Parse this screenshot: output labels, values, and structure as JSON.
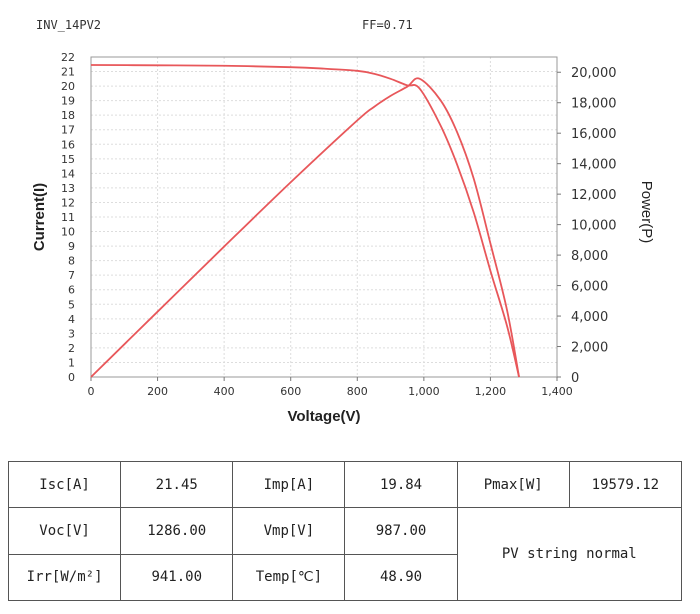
{
  "header": {
    "inverter": "INV_14PV2",
    "fill_factor": "FF=0.71"
  },
  "chart_data": {
    "type": "line",
    "xlabel": "Voltage(V)",
    "ylabel_left": "Current(I)",
    "ylabel_right": "Power(P)",
    "xlim": [
      0,
      1400
    ],
    "ylim_left": [
      0,
      22
    ],
    "ylim_right": [
      0,
      21000
    ],
    "x_ticks": [
      "0",
      "200",
      "400",
      "600",
      "800",
      "1,000",
      "1,200",
      "1,400"
    ],
    "y_left_ticks": [
      "0",
      "1",
      "2",
      "3",
      "4",
      "5",
      "6",
      "7",
      "8",
      "9",
      "10",
      "11",
      "12",
      "13",
      "14",
      "15",
      "16",
      "17",
      "18",
      "19",
      "20",
      "21",
      "22"
    ],
    "y_right_ticks": [
      "0",
      "2,000",
      "4,000",
      "6,000",
      "8,000",
      "10,000",
      "12,000",
      "14,000",
      "16,000",
      "18,000",
      "20,000"
    ],
    "grid": true,
    "series": [
      {
        "axis": "left",
        "color": "#e8575a",
        "x": [
          0,
          200,
          400,
          600,
          700,
          800,
          850,
          900,
          950,
          987,
          1050,
          1100,
          1150,
          1200,
          1250,
          1286
        ],
        "y": [
          21.45,
          21.43,
          21.4,
          21.3,
          21.2,
          21.05,
          20.85,
          20.5,
          20.05,
          19.84,
          17.3,
          14.6,
          11.3,
          7.3,
          3.5,
          0
        ]
      },
      {
        "axis": "right",
        "color": "#e8575a",
        "x": [
          0,
          200,
          400,
          600,
          800,
          850,
          900,
          950,
          987,
          1050,
          1100,
          1150,
          1200,
          1250,
          1286
        ],
        "y": [
          0,
          4286,
          8560,
          12780,
          16840,
          17720,
          18450,
          19050,
          19579,
          18165,
          16060,
          13000,
          8760,
          4375,
          0
        ]
      }
    ]
  },
  "params": {
    "isc_label": "Isc[A]",
    "isc_value": "21.45",
    "imp_label": "Imp[A]",
    "imp_value": "19.84",
    "pmax_label": "Pmax[W]",
    "pmax_value": "19579.12",
    "voc_label": "Voc[V]",
    "voc_value": "1286.00",
    "vmp_label": "Vmp[V]",
    "vmp_value": "987.00",
    "irr_label": "Irr[W/m²]",
    "irr_value": "941.00",
    "temp_label": "Temp[℃]",
    "temp_value": "48.90",
    "status": "PV string normal"
  }
}
